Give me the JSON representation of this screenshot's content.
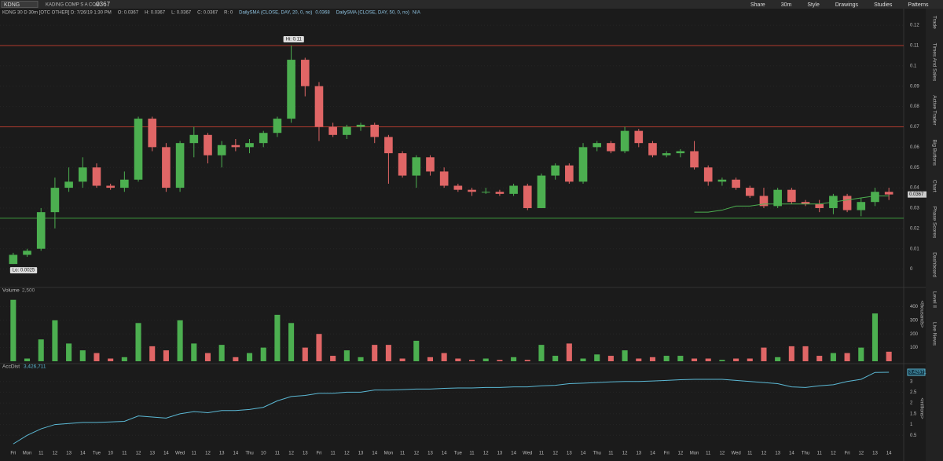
{
  "ui": {
    "symbol": "KDNG",
    "company": "KADING COMP S A COM",
    "last": ".0367",
    "study_line": "KDNG 30 D 30m [OTC OTHER]",
    "quote": [
      "D: 7/26/19 1:30 PM",
      "O: 0.0367",
      "H: 0.0367",
      "L: 0.0367",
      "C: 0.0367",
      "R: 0"
    ],
    "studies": [
      {
        "name": "DailySMA (CLOSE, DAY, 20, 0, no)",
        "value": "0.0368"
      },
      {
        "name": "DailySMA (CLOSE, DAY, 50, 0, no)",
        "value": "N/A"
      }
    ],
    "toolbar": [
      "Share",
      "30m",
      "Style",
      "Drawings",
      "Studies",
      "Patterns"
    ],
    "sidebar": [
      "Trade",
      "Times And Sales",
      "Active Trader",
      "Big Buttons",
      "Chart",
      "Phase Scores",
      "Dashboard",
      "Level II",
      "Live News"
    ]
  },
  "chart_data": [
    {
      "type": "candlestick",
      "categories": [
        "Fri",
        "Mon",
        "11",
        "12",
        "13",
        "14",
        "Tue",
        "10",
        "11",
        "12",
        "13",
        "14",
        "Wed",
        "11",
        "12",
        "13",
        "14",
        "Thu",
        "10",
        "11",
        "12",
        "13",
        "Fri",
        "11",
        "12",
        "13",
        "14",
        "Mon",
        "11",
        "12",
        "13",
        "14",
        "Tue",
        "11",
        "12",
        "13",
        "14",
        "Wed",
        "11",
        "12",
        "13",
        "14",
        "Thu",
        "11",
        "12",
        "13",
        "14",
        "Fri",
        "12",
        "Mon",
        "11",
        "12",
        "Wed",
        "11",
        "12",
        "13",
        "14",
        "Thu",
        "11",
        "12",
        "Fri",
        "12",
        "13",
        "14"
      ],
      "ohlc": [
        [
          0.0025,
          0.008,
          0.0025,
          0.007
        ],
        [
          0.007,
          0.01,
          0.006,
          0.009
        ],
        [
          0.01,
          0.03,
          0.009,
          0.028
        ],
        [
          0.028,
          0.045,
          0.02,
          0.04
        ],
        [
          0.04,
          0.05,
          0.038,
          0.043
        ],
        [
          0.043,
          0.055,
          0.04,
          0.05
        ],
        [
          0.05,
          0.052,
          0.04,
          0.041
        ],
        [
          0.041,
          0.042,
          0.039,
          0.04
        ],
        [
          0.04,
          0.048,
          0.038,
          0.044
        ],
        [
          0.044,
          0.075,
          0.043,
          0.074
        ],
        [
          0.074,
          0.075,
          0.058,
          0.06
        ],
        [
          0.06,
          0.062,
          0.038,
          0.04
        ],
        [
          0.04,
          0.063,
          0.038,
          0.062
        ],
        [
          0.062,
          0.07,
          0.055,
          0.066
        ],
        [
          0.066,
          0.067,
          0.052,
          0.056
        ],
        [
          0.056,
          0.063,
          0.05,
          0.061
        ],
        [
          0.061,
          0.064,
          0.058,
          0.06
        ],
        [
          0.06,
          0.064,
          0.057,
          0.062
        ],
        [
          0.062,
          0.068,
          0.06,
          0.067
        ],
        [
          0.067,
          0.075,
          0.065,
          0.074
        ],
        [
          0.074,
          0.11,
          0.072,
          0.103
        ],
        [
          0.103,
          0.104,
          0.085,
          0.09
        ],
        [
          0.09,
          0.092,
          0.063,
          0.07
        ],
        [
          0.07,
          0.072,
          0.065,
          0.066
        ],
        [
          0.066,
          0.071,
          0.064,
          0.07
        ],
        [
          0.07,
          0.072,
          0.068,
          0.071
        ],
        [
          0.071,
          0.072,
          0.062,
          0.065
        ],
        [
          0.065,
          0.066,
          0.042,
          0.057
        ],
        [
          0.057,
          0.058,
          0.045,
          0.046
        ],
        [
          0.046,
          0.056,
          0.04,
          0.055
        ],
        [
          0.055,
          0.056,
          0.046,
          0.048
        ],
        [
          0.048,
          0.05,
          0.04,
          0.041
        ],
        [
          0.041,
          0.042,
          0.038,
          0.039
        ],
        [
          0.039,
          0.04,
          0.036,
          0.038
        ],
        [
          0.038,
          0.04,
          0.037,
          0.038
        ],
        [
          0.038,
          0.039,
          0.036,
          0.037
        ],
        [
          0.037,
          0.042,
          0.036,
          0.041
        ],
        [
          0.041,
          0.042,
          0.029,
          0.03
        ],
        [
          0.03,
          0.047,
          0.03,
          0.046
        ],
        [
          0.046,
          0.052,
          0.044,
          0.051
        ],
        [
          0.051,
          0.052,
          0.042,
          0.043
        ],
        [
          0.043,
          0.062,
          0.042,
          0.06
        ],
        [
          0.06,
          0.063,
          0.058,
          0.062
        ],
        [
          0.062,
          0.063,
          0.057,
          0.058
        ],
        [
          0.058,
          0.07,
          0.057,
          0.068
        ],
        [
          0.068,
          0.069,
          0.06,
          0.062
        ],
        [
          0.062,
          0.063,
          0.055,
          0.056
        ],
        [
          0.056,
          0.058,
          0.055,
          0.057
        ],
        [
          0.057,
          0.059,
          0.055,
          0.058
        ],
        [
          0.058,
          0.063,
          0.049,
          0.05
        ],
        [
          0.05,
          0.051,
          0.041,
          0.043
        ],
        [
          0.043,
          0.045,
          0.041,
          0.044
        ],
        [
          0.044,
          0.045,
          0.039,
          0.04
        ],
        [
          0.04,
          0.041,
          0.035,
          0.036
        ],
        [
          0.036,
          0.04,
          0.03,
          0.031
        ],
        [
          0.031,
          0.04,
          0.03,
          0.039
        ],
        [
          0.039,
          0.04,
          0.032,
          0.033
        ],
        [
          0.033,
          0.034,
          0.031,
          0.032
        ],
        [
          0.032,
          0.034,
          0.028,
          0.03
        ],
        [
          0.03,
          0.037,
          0.027,
          0.036
        ],
        [
          0.036,
          0.037,
          0.028,
          0.029
        ],
        [
          0.029,
          0.035,
          0.026,
          0.033
        ],
        [
          0.033,
          0.04,
          0.031,
          0.038
        ],
        [
          0.038,
          0.04,
          0.034,
          0.0367
        ]
      ],
      "up_color": "#4caf50",
      "down_color": "#e06666",
      "sma": {
        "color": "#4caf50",
        "values": [
          null,
          null,
          null,
          null,
          null,
          null,
          null,
          null,
          null,
          null,
          null,
          null,
          null,
          null,
          null,
          null,
          null,
          null,
          null,
          null,
          null,
          null,
          null,
          null,
          null,
          null,
          null,
          null,
          null,
          null,
          null,
          null,
          null,
          null,
          null,
          null,
          null,
          null,
          null,
          null,
          null,
          null,
          null,
          null,
          null,
          null,
          null,
          null,
          null,
          0.028,
          0.028,
          0.029,
          0.031,
          0.031,
          0.032,
          0.032,
          0.032,
          0.032,
          0.032,
          0.033,
          0.034,
          0.035,
          0.036,
          0.036
        ]
      },
      "levels": [
        {
          "value": 0.11,
          "color": "#b03a2e"
        },
        {
          "value": 0.07,
          "color": "#b03a2e"
        },
        {
          "value": 0.025,
          "color": "#3c9a3c"
        }
      ],
      "hi_label": "Hi: 0.11",
      "lo_label": "Lo: 0.0025",
      "last_label": "0.0367",
      "ylim": [
        -0.0075,
        0.1239
      ],
      "yticks": [
        0,
        0.01,
        0.02,
        0.03,
        0.04,
        0.05,
        0.06,
        0.07,
        0.08,
        0.09,
        0.1,
        0.11,
        0.12
      ]
    },
    {
      "type": "bar",
      "title": "Volume",
      "subtitle": "2,500",
      "y_label": "<thousands>",
      "values": [
        450,
        20,
        160,
        300,
        130,
        80,
        60,
        20,
        30,
        280,
        110,
        80,
        300,
        130,
        60,
        120,
        30,
        60,
        100,
        340,
        280,
        100,
        200,
        40,
        80,
        30,
        120,
        120,
        20,
        150,
        30,
        60,
        20,
        10,
        20,
        10,
        30,
        10,
        120,
        40,
        130,
        20,
        50,
        40,
        80,
        20,
        30,
        40,
        40,
        20,
        20,
        10,
        20,
        20,
        100,
        30,
        110,
        110,
        40,
        60,
        60,
        100,
        350,
        70
      ],
      "ylim": [
        0,
        460
      ],
      "yticks": [
        100,
        200,
        300,
        400
      ]
    },
    {
      "type": "line",
      "title": "AccDist",
      "subtitle": "3,426,711",
      "y_label": "<millions>",
      "color": "#5bb8d4",
      "last_label": "3.42671",
      "values": [
        0.1,
        0.5,
        0.8,
        1.0,
        1.05,
        1.1,
        1.1,
        1.12,
        1.15,
        1.4,
        1.35,
        1.3,
        1.5,
        1.6,
        1.55,
        1.65,
        1.65,
        1.7,
        1.8,
        2.1,
        2.3,
        2.35,
        2.45,
        2.45,
        2.5,
        2.5,
        2.6,
        2.6,
        2.62,
        2.65,
        2.65,
        2.68,
        2.7,
        2.7,
        2.72,
        2.72,
        2.75,
        2.75,
        2.8,
        2.82,
        2.9,
        2.92,
        2.95,
        2.98,
        3.0,
        3.0,
        3.02,
        3.05,
        3.08,
        3.1,
        3.1,
        3.1,
        3.05,
        3.0,
        2.95,
        2.9,
        2.75,
        2.72,
        2.8,
        2.85,
        3.0,
        3.1,
        3.42,
        3.426711
      ],
      "ylim": [
        0,
        3.5
      ],
      "yticks": [
        0.5,
        1,
        1.5,
        2,
        2.5,
        3
      ]
    }
  ]
}
